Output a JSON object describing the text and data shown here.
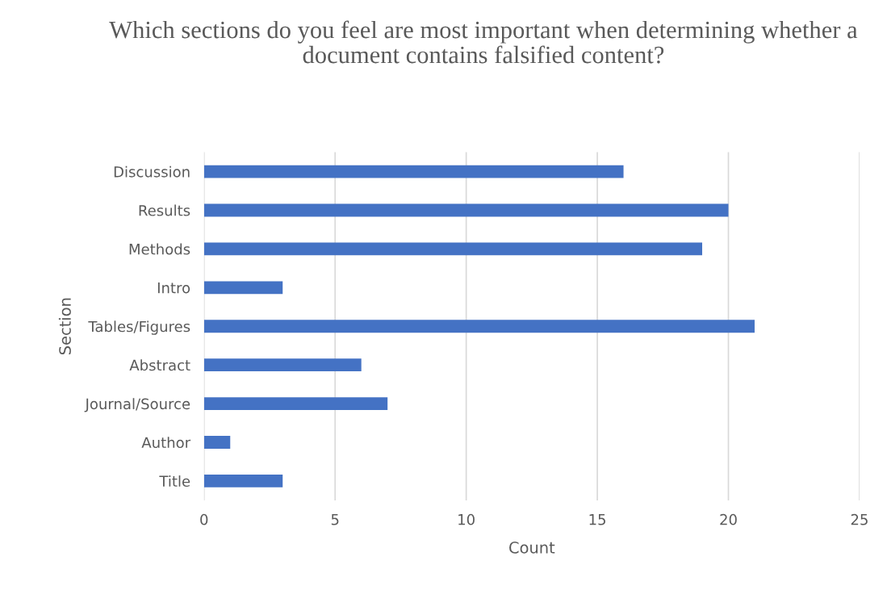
{
  "chart_data": {
    "type": "bar",
    "orientation": "horizontal",
    "title": "Which sections do you feel are most important when determining whether a document contains falsified content?",
    "xlabel": "Count",
    "ylabel": "Section",
    "categories": [
      "Discussion",
      "Results",
      "Methods",
      "Intro",
      "Tables/Figures",
      "Abstract",
      "Journal/Source",
      "Author",
      "Title"
    ],
    "values": [
      16,
      20,
      19,
      3,
      21,
      6,
      7,
      1,
      3
    ],
    "color": "#4472c4",
    "xlim": [
      0,
      25
    ],
    "xticks": [
      0,
      5,
      10,
      15,
      20,
      25
    ],
    "grid": "x",
    "legend": false
  }
}
